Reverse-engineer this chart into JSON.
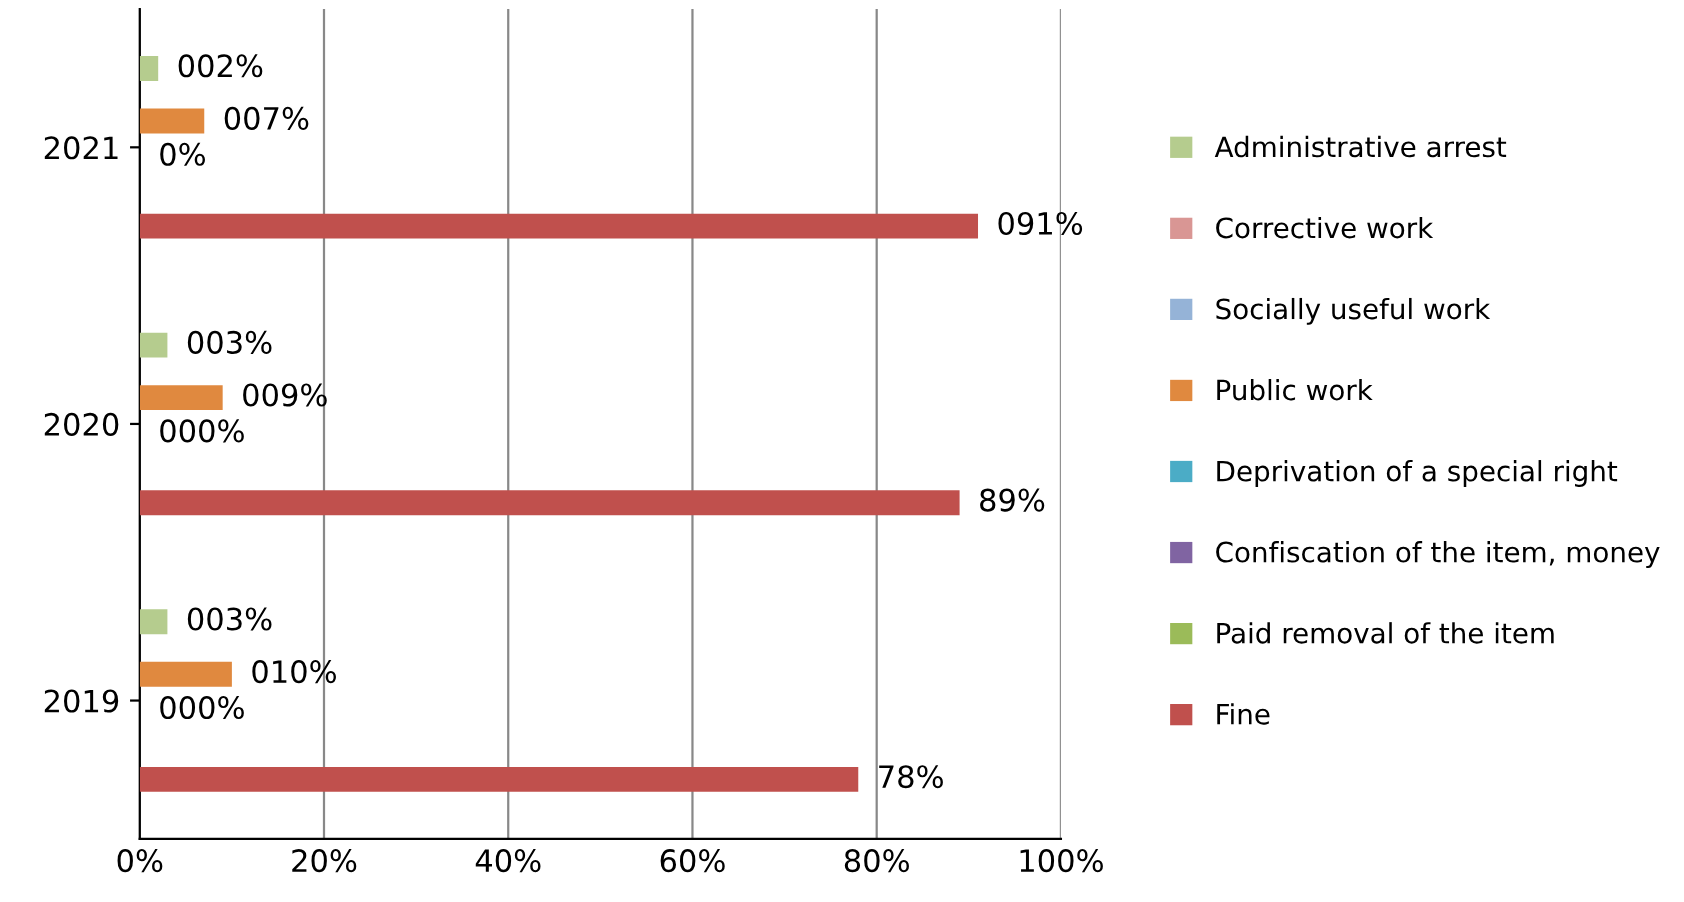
{
  "chart_data": {
    "type": "bar",
    "orientation": "horizontal",
    "categories": [
      "2021",
      "2020",
      "2019"
    ],
    "series": [
      {
        "name": "Administrative arrest",
        "color": "#b5cc8e",
        "values": [
          2,
          3,
          3
        ],
        "value_labels": [
          "002%",
          "003%",
          "003%"
        ]
      },
      {
        "name": "Corrective work",
        "color": "#d99694",
        "values": [
          null,
          null,
          null
        ]
      },
      {
        "name": "Socially useful work",
        "color": "#95b3d7",
        "values": [
          null,
          null,
          null
        ]
      },
      {
        "name": "Public work",
        "color": "#e0893f",
        "values": [
          7,
          9,
          10
        ],
        "value_labels": [
          "007%",
          "009%",
          "010%"
        ]
      },
      {
        "name": "Deprivation of a special right",
        "color": "#4bacc6",
        "values": [
          null,
          null,
          null
        ]
      },
      {
        "name": "Confiscation of the item, money",
        "color": "#8064a2",
        "values": [
          null,
          null,
          null
        ]
      },
      {
        "name": "Paid removal of the item",
        "color": "#9bbb59",
        "values": [
          0,
          0,
          0
        ],
        "value_labels": [
          "0%",
          "000%",
          "000%"
        ]
      },
      {
        "name": "Fine",
        "color": "#c0504d",
        "values": [
          91,
          89,
          78
        ],
        "value_labels": [
          "091%",
          "89%",
          "78%"
        ]
      }
    ],
    "xlim": [
      0,
      100
    ],
    "xticks": [
      {
        "value": 0,
        "label": "0%"
      },
      {
        "value": 20,
        "label": "20%"
      },
      {
        "value": 40,
        "label": "40%"
      },
      {
        "value": 60,
        "label": "60%"
      },
      {
        "value": 80,
        "label": "80%"
      },
      {
        "value": 100,
        "label": "100%"
      }
    ],
    "grid": "x",
    "legend": "right"
  }
}
